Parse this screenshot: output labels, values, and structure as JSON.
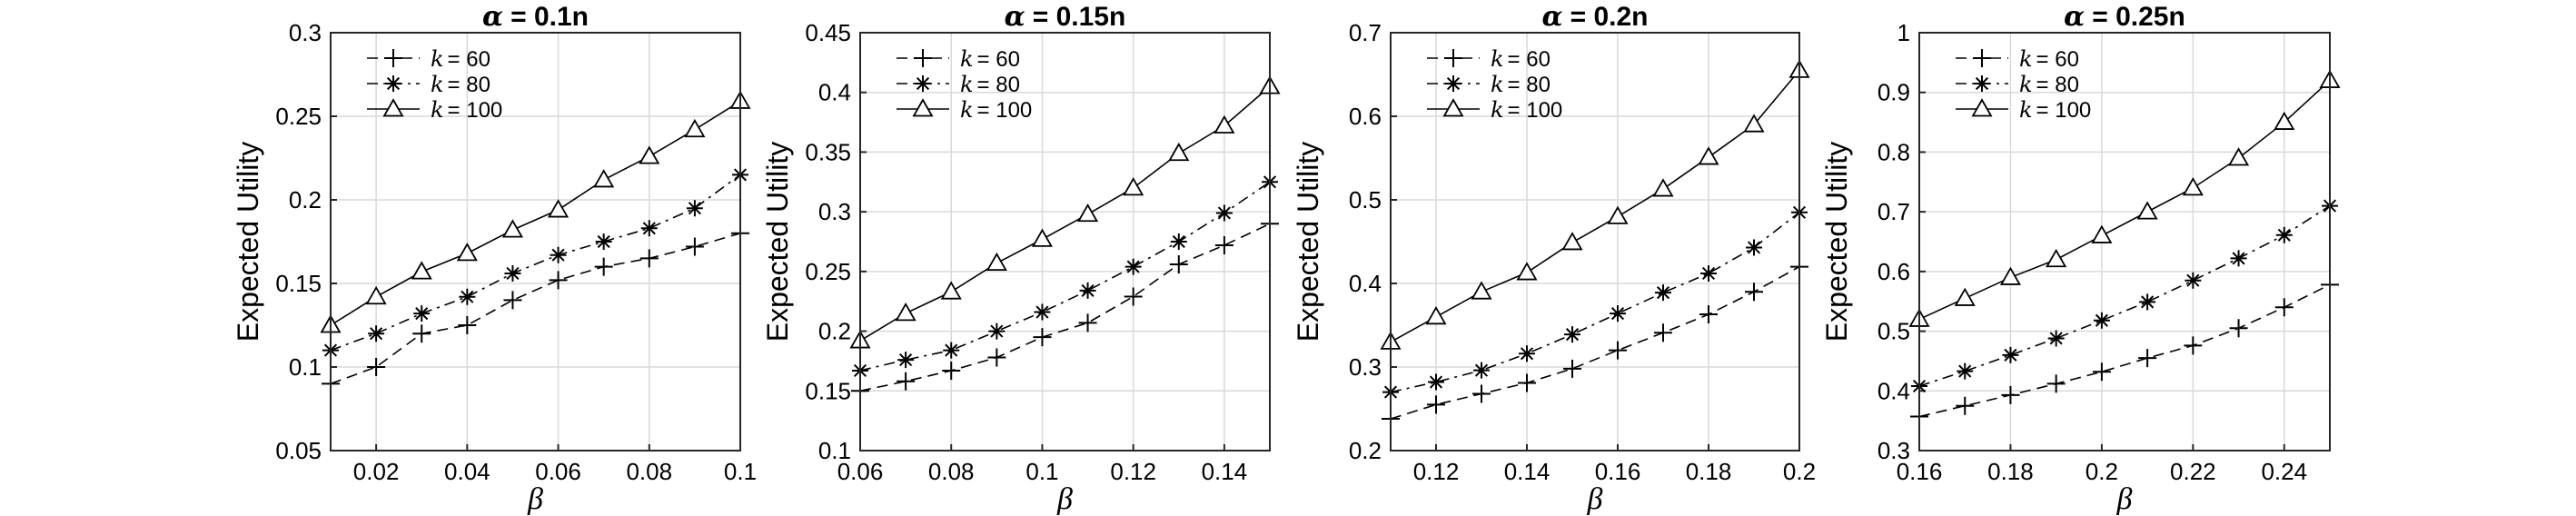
{
  "chart_data": [
    {
      "type": "line",
      "title_prefix": "α",
      "title_value": "= 0.1n",
      "xlabel": "β",
      "ylabel": "Expected Utility",
      "xlim": [
        0.01,
        0.1
      ],
      "ylim": [
        0.05,
        0.3
      ],
      "xticks": [
        0.02,
        0.04,
        0.06,
        0.08,
        0.1
      ],
      "xticklabels": [
        "0.02",
        "0.04",
        "0.06",
        "0.08",
        "0.1"
      ],
      "yticks": [
        0.05,
        0.1,
        0.15,
        0.2,
        0.25,
        0.3
      ],
      "yticklabels": [
        "0.05",
        "0.1",
        "0.15",
        "0.2",
        "0.25",
        "0.3"
      ],
      "grid": true,
      "legend_position": "top-left",
      "x": [
        0.01,
        0.02,
        0.03,
        0.04,
        0.05,
        0.06,
        0.07,
        0.08,
        0.09,
        0.1
      ],
      "series": [
        {
          "name": "k = 60",
          "name_var": "k",
          "name_val": "= 60",
          "marker": "plus",
          "dash": "dashed",
          "values": [
            0.09,
            0.1,
            0.12,
            0.125,
            0.14,
            0.152,
            0.16,
            0.165,
            0.172,
            0.18
          ]
        },
        {
          "name": "k = 80",
          "name_var": "k",
          "name_val": "= 80",
          "marker": "asterisk",
          "dash": "dashdot",
          "values": [
            0.11,
            0.12,
            0.132,
            0.142,
            0.156,
            0.167,
            0.175,
            0.183,
            0.195,
            0.215
          ]
        },
        {
          "name": "k = 100",
          "name_var": "k",
          "name_val": "= 100",
          "marker": "triangle",
          "dash": "solid",
          "values": [
            0.125,
            0.142,
            0.157,
            0.168,
            0.182,
            0.194,
            0.212,
            0.226,
            0.242,
            0.259
          ]
        }
      ]
    },
    {
      "type": "line",
      "title_prefix": "α",
      "title_value": "= 0.15n",
      "xlabel": "β",
      "ylabel": "Expected Utility",
      "xlim": [
        0.06,
        0.15
      ],
      "ylim": [
        0.1,
        0.45
      ],
      "xticks": [
        0.06,
        0.08,
        0.1,
        0.12,
        0.14
      ],
      "xticklabels": [
        "0.06",
        "0.08",
        "0.1",
        "0.12",
        "0.14"
      ],
      "yticks": [
        0.1,
        0.15,
        0.2,
        0.25,
        0.3,
        0.35,
        0.4,
        0.45
      ],
      "yticklabels": [
        "0.1",
        "0.15",
        "0.2",
        "0.25",
        "0.3",
        "0.35",
        "0.4",
        "0.45"
      ],
      "grid": true,
      "legend_position": "top-left",
      "x": [
        0.06,
        0.07,
        0.08,
        0.09,
        0.1,
        0.11,
        0.12,
        0.13,
        0.14,
        0.15
      ],
      "series": [
        {
          "name": "k = 60",
          "name_var": "k",
          "name_val": "= 60",
          "marker": "plus",
          "dash": "dashed",
          "values": [
            0.15,
            0.158,
            0.167,
            0.178,
            0.195,
            0.207,
            0.229,
            0.256,
            0.272,
            0.29
          ]
        },
        {
          "name": "k = 80",
          "name_var": "k",
          "name_val": "= 80",
          "marker": "asterisk",
          "dash": "dashdot",
          "values": [
            0.167,
            0.176,
            0.184,
            0.2,
            0.216,
            0.234,
            0.254,
            0.275,
            0.299,
            0.325
          ]
        },
        {
          "name": "k = 100",
          "name_var": "k",
          "name_val": "= 100",
          "marker": "triangle",
          "dash": "solid",
          "values": [
            0.192,
            0.215,
            0.233,
            0.257,
            0.277,
            0.298,
            0.32,
            0.349,
            0.372,
            0.405
          ]
        }
      ]
    },
    {
      "type": "line",
      "title_prefix": "α",
      "title_value": "= 0.2n",
      "xlabel": "β",
      "ylabel": "Expected Utility",
      "xlim": [
        0.11,
        0.2
      ],
      "ylim": [
        0.2,
        0.7
      ],
      "xticks": [
        0.12,
        0.14,
        0.16,
        0.18,
        0.2
      ],
      "xticklabels": [
        "0.12",
        "0.14",
        "0.16",
        "0.18",
        "0.2"
      ],
      "yticks": [
        0.2,
        0.3,
        0.4,
        0.5,
        0.6,
        0.7
      ],
      "yticklabels": [
        "0.2",
        "0.3",
        "0.4",
        "0.5",
        "0.6",
        "0.7"
      ],
      "grid": true,
      "legend_position": "top-left",
      "x": [
        0.11,
        0.12,
        0.13,
        0.14,
        0.15,
        0.16,
        0.17,
        0.18,
        0.19,
        0.2
      ],
      "series": [
        {
          "name": "k = 60",
          "name_var": "k",
          "name_val": "= 60",
          "marker": "plus",
          "dash": "dashed",
          "values": [
            0.238,
            0.255,
            0.268,
            0.281,
            0.298,
            0.32,
            0.341,
            0.363,
            0.39,
            0.42
          ]
        },
        {
          "name": "k = 80",
          "name_var": "k",
          "name_val": "= 80",
          "marker": "asterisk",
          "dash": "dashdot",
          "values": [
            0.27,
            0.282,
            0.296,
            0.316,
            0.339,
            0.364,
            0.389,
            0.412,
            0.443,
            0.485
          ]
        },
        {
          "name": "k = 100",
          "name_var": "k",
          "name_val": "= 100",
          "marker": "triangle",
          "dash": "solid",
          "values": [
            0.33,
            0.36,
            0.39,
            0.413,
            0.449,
            0.48,
            0.513,
            0.551,
            0.59,
            0.655
          ]
        }
      ]
    },
    {
      "type": "line",
      "title_prefix": "α",
      "title_value": "= 0.25n",
      "xlabel": "β",
      "ylabel": "Expected Utility",
      "xlim": [
        0.16,
        0.25
      ],
      "ylim": [
        0.3,
        1.0
      ],
      "xticks": [
        0.16,
        0.18,
        0.2,
        0.22,
        0.24
      ],
      "xticklabels": [
        "0.16",
        "0.18",
        "0.2",
        "0.22",
        "0.24"
      ],
      "yticks": [
        0.3,
        0.4,
        0.5,
        0.6,
        0.7,
        0.8,
        0.9,
        1.0
      ],
      "yticklabels": [
        "0.3",
        "0.4",
        "0.5",
        "0.6",
        "0.7",
        "0.8",
        "0.9",
        "1"
      ],
      "grid": true,
      "legend_position": "top-left",
      "x": [
        0.16,
        0.17,
        0.18,
        0.19,
        0.2,
        0.21,
        0.22,
        0.23,
        0.24,
        0.25
      ],
      "series": [
        {
          "name": "k = 60",
          "name_var": "k",
          "name_val": "= 60",
          "marker": "plus",
          "dash": "dashed",
          "values": [
            0.357,
            0.375,
            0.393,
            0.412,
            0.432,
            0.455,
            0.476,
            0.505,
            0.54,
            0.578
          ]
        },
        {
          "name": "k = 80",
          "name_var": "k",
          "name_val": "= 80",
          "marker": "asterisk",
          "dash": "dashdot",
          "values": [
            0.408,
            0.433,
            0.46,
            0.488,
            0.518,
            0.549,
            0.585,
            0.622,
            0.661,
            0.71
          ]
        },
        {
          "name": "k = 100",
          "name_var": "k",
          "name_val": "= 100",
          "marker": "triangle",
          "dash": "solid",
          "values": [
            0.52,
            0.555,
            0.59,
            0.62,
            0.66,
            0.7,
            0.74,
            0.79,
            0.85,
            0.92
          ]
        }
      ]
    }
  ]
}
